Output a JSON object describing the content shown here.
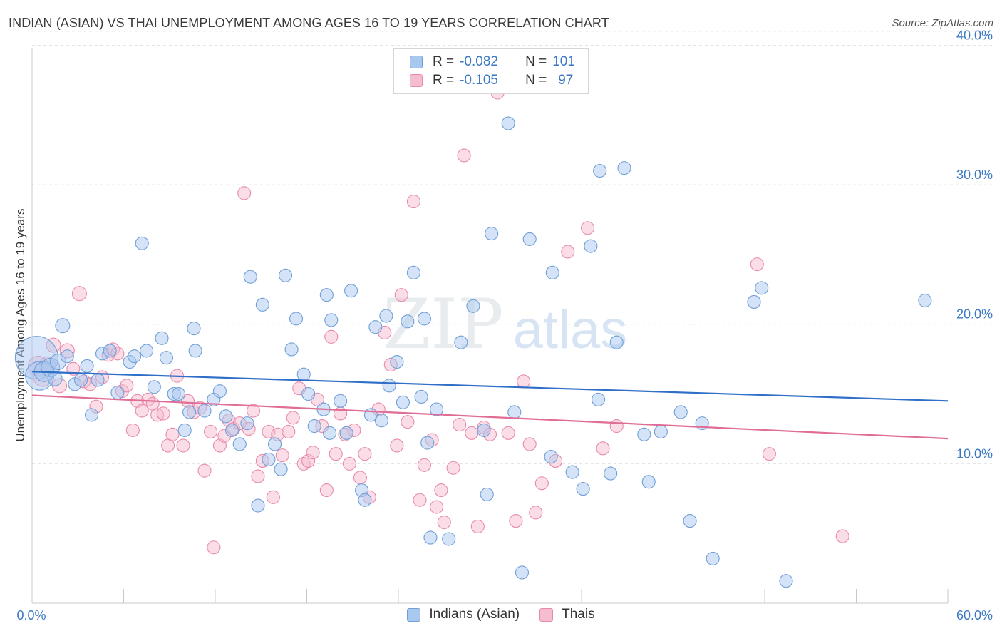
{
  "title": "INDIAN (ASIAN) VS THAI UNEMPLOYMENT AMONG AGES 16 TO 19 YEARS CORRELATION CHART",
  "source": "Source: ZipAtlas.com",
  "watermark": {
    "zip": "ZIP",
    "atlas": "atlas"
  },
  "legend": {
    "r_label": "R =",
    "n_label": "N =",
    "series": [
      {
        "name": "Indians (Asian)",
        "r": "-0.082",
        "n": "101"
      },
      {
        "name": "Thais",
        "r": "-0.105",
        "n": "97"
      }
    ]
  },
  "colors": {
    "indians_fill": "#a9c8ef",
    "indians_stroke": "#6f9fd6",
    "indians_line": "#2f6fc7",
    "thais_fill": "#f6bccf",
    "thais_stroke": "#e88aab",
    "thais_line": "#e06d95",
    "axis_label": "#3b78c4"
  },
  "chart_data": {
    "type": "scatter",
    "xlabel": "",
    "ylabel": "Unemployment Among Ages 16 to 19 years",
    "xlim": [
      0,
      60
    ],
    "ylim": [
      0,
      41.2
    ],
    "x_tick_labels": [
      "0.0%",
      "60.0%"
    ],
    "y_ticks": [
      10,
      20,
      30,
      40
    ],
    "y_tick_labels": [
      "10.0%",
      "20.0%",
      "30.0%",
      "40.0%"
    ],
    "grid": true,
    "legend_position": "top-center",
    "series": [
      {
        "name": "Indians (Asian)",
        "trend": {
          "x": [
            0,
            60
          ],
          "y": [
            16.6,
            14.5
          ]
        },
        "points": [
          [
            0.3,
            17.6,
            30
          ],
          [
            0.5,
            16.3,
            20
          ],
          [
            0.8,
            16.6,
            14
          ],
          [
            1.2,
            16.9,
            13
          ],
          [
            1.5,
            16.1,
            10
          ],
          [
            1.7,
            17.3,
            11
          ],
          [
            2.0,
            19.9,
            10
          ],
          [
            2.3,
            17.7,
            9
          ],
          [
            2.8,
            15.7,
            9
          ],
          [
            3.2,
            16.0,
            9
          ],
          [
            3.6,
            17.0,
            9
          ],
          [
            3.9,
            13.5,
            9
          ],
          [
            4.3,
            16.0,
            9
          ],
          [
            4.6,
            17.9,
            9
          ],
          [
            5.1,
            18.1,
            9
          ],
          [
            5.6,
            15.1,
            9
          ],
          [
            6.4,
            17.3,
            9
          ],
          [
            6.7,
            17.7,
            9
          ],
          [
            7.2,
            25.8,
            9
          ],
          [
            7.5,
            18.1,
            9
          ],
          [
            8.0,
            15.5,
            9
          ],
          [
            8.5,
            19.0,
            9
          ],
          [
            8.8,
            17.6,
            9
          ],
          [
            9.3,
            15.0,
            9
          ],
          [
            9.6,
            15.0,
            9
          ],
          [
            10.0,
            12.4,
            9
          ],
          [
            10.3,
            13.7,
            9
          ],
          [
            10.7,
            18.1,
            9
          ],
          [
            11.3,
            13.8,
            9
          ],
          [
            11.9,
            14.6,
            9
          ],
          [
            10.6,
            19.7,
            9
          ],
          [
            12.3,
            15.2,
            9
          ],
          [
            12.7,
            13.4,
            9
          ],
          [
            13.1,
            12.4,
            9
          ],
          [
            13.6,
            11.4,
            9
          ],
          [
            14.1,
            12.9,
            9
          ],
          [
            14.3,
            23.4,
            9
          ],
          [
            14.8,
            7.0,
            9
          ],
          [
            15.1,
            21.4,
            9
          ],
          [
            15.5,
            10.3,
            9
          ],
          [
            15.9,
            11.4,
            9
          ],
          [
            16.3,
            9.6,
            9
          ],
          [
            16.6,
            23.5,
            9
          ],
          [
            17.0,
            18.2,
            9
          ],
          [
            17.3,
            20.4,
            9
          ],
          [
            17.8,
            16.4,
            9
          ],
          [
            18.1,
            15.0,
            9
          ],
          [
            18.5,
            12.7,
            9
          ],
          [
            19.1,
            13.9,
            9
          ],
          [
            19.5,
            12.2,
            9
          ],
          [
            19.3,
            22.1,
            9
          ],
          [
            19.6,
            20.3,
            9
          ],
          [
            20.2,
            14.5,
            9
          ],
          [
            20.6,
            12.2,
            9
          ],
          [
            20.9,
            22.4,
            9
          ],
          [
            21.6,
            8.1,
            9
          ],
          [
            21.8,
            7.4,
            9
          ],
          [
            22.2,
            13.5,
            9
          ],
          [
            22.5,
            19.8,
            9
          ],
          [
            22.9,
            13.1,
            9
          ],
          [
            23.2,
            20.6,
            9
          ],
          [
            23.4,
            15.6,
            9
          ],
          [
            23.9,
            17.3,
            9
          ],
          [
            24.3,
            14.4,
            9
          ],
          [
            24.6,
            20.2,
            9
          ],
          [
            25.0,
            23.7,
            9
          ],
          [
            25.5,
            14.8,
            9
          ],
          [
            25.7,
            20.4,
            9
          ],
          [
            25.9,
            11.5,
            9
          ],
          [
            26.1,
            4.7,
            9
          ],
          [
            26.5,
            13.9,
            9
          ],
          [
            27.3,
            4.6,
            9
          ],
          [
            28.1,
            18.7,
            9
          ],
          [
            28.9,
            21.3,
            9
          ],
          [
            29.6,
            12.4,
            9
          ],
          [
            29.8,
            7.8,
            9
          ],
          [
            30.1,
            26.5,
            9
          ],
          [
            31.2,
            34.4,
            9
          ],
          [
            31.6,
            13.7,
            9
          ],
          [
            32.1,
            2.2,
            9
          ],
          [
            32.6,
            26.1,
            9
          ],
          [
            34.0,
            10.5,
            9
          ],
          [
            34.1,
            23.7,
            9
          ],
          [
            35.4,
            9.4,
            9
          ],
          [
            36.1,
            8.2,
            9
          ],
          [
            36.6,
            25.6,
            9
          ],
          [
            37.1,
            14.6,
            9
          ],
          [
            37.2,
            31.0,
            9
          ],
          [
            37.9,
            9.3,
            9
          ],
          [
            38.3,
            18.7,
            9
          ],
          [
            38.8,
            31.2,
            9
          ],
          [
            40.1,
            12.1,
            9
          ],
          [
            40.4,
            8.7,
            9
          ],
          [
            41.2,
            12.3,
            9
          ],
          [
            42.5,
            13.7,
            9
          ],
          [
            43.1,
            5.9,
            9
          ],
          [
            43.9,
            12.9,
            9
          ],
          [
            44.6,
            3.2,
            9
          ],
          [
            47.3,
            21.6,
            9
          ],
          [
            47.8,
            22.6,
            9
          ],
          [
            49.4,
            1.6,
            9
          ],
          [
            58.5,
            21.7,
            9
          ]
        ]
      },
      {
        "name": "Thais",
        "trend": {
          "x": [
            0,
            60
          ],
          "y": [
            14.9,
            11.8
          ]
        },
        "points": [
          [
            0.4,
            17.0,
            14
          ],
          [
            0.7,
            16.2,
            13
          ],
          [
            1.0,
            17.1,
            11
          ],
          [
            1.4,
            18.5,
            10
          ],
          [
            1.8,
            15.6,
            10
          ],
          [
            2.3,
            18.1,
            10
          ],
          [
            2.7,
            16.8,
            9
          ],
          [
            3.1,
            22.2,
            10
          ],
          [
            3.4,
            15.9,
            9
          ],
          [
            3.8,
            15.7,
            9
          ],
          [
            4.2,
            14.1,
            9
          ],
          [
            4.6,
            16.2,
            9
          ],
          [
            5.0,
            17.8,
            9
          ],
          [
            5.3,
            18.2,
            9
          ],
          [
            5.6,
            17.9,
            9
          ],
          [
            5.9,
            15.2,
            9
          ],
          [
            6.2,
            15.6,
            9
          ],
          [
            6.6,
            12.4,
            9
          ],
          [
            6.9,
            14.5,
            9
          ],
          [
            7.2,
            13.8,
            9
          ],
          [
            7.6,
            14.6,
            9
          ],
          [
            7.9,
            14.3,
            9
          ],
          [
            8.2,
            13.5,
            9
          ],
          [
            8.6,
            13.6,
            9
          ],
          [
            8.9,
            11.3,
            9
          ],
          [
            9.2,
            12.1,
            9
          ],
          [
            9.5,
            16.3,
            9
          ],
          [
            9.9,
            11.3,
            9
          ],
          [
            10.2,
            14.5,
            9
          ],
          [
            10.6,
            13.7,
            9
          ],
          [
            11.0,
            14.0,
            9
          ],
          [
            11.3,
            9.5,
            9
          ],
          [
            11.7,
            12.3,
            9
          ],
          [
            11.9,
            4.0,
            9
          ],
          [
            12.3,
            11.3,
            9
          ],
          [
            12.6,
            12.0,
            9
          ],
          [
            12.9,
            13.1,
            9
          ],
          [
            13.2,
            12.5,
            9
          ],
          [
            13.6,
            12.9,
            9
          ],
          [
            13.9,
            29.4,
            9
          ],
          [
            14.2,
            12.5,
            9
          ],
          [
            14.5,
            13.8,
            9
          ],
          [
            14.8,
            9.1,
            9
          ],
          [
            15.1,
            10.2,
            9
          ],
          [
            15.5,
            12.3,
            9
          ],
          [
            15.8,
            7.6,
            9
          ],
          [
            16.1,
            12.1,
            9
          ],
          [
            16.4,
            10.6,
            9
          ],
          [
            16.8,
            12.3,
            9
          ],
          [
            17.1,
            13.3,
            9
          ],
          [
            17.5,
            15.4,
            9
          ],
          [
            17.8,
            10.0,
            9
          ],
          [
            18.1,
            10.2,
            9
          ],
          [
            18.4,
            10.8,
            9
          ],
          [
            18.7,
            14.6,
            9
          ],
          [
            19.0,
            12.7,
            9
          ],
          [
            19.3,
            8.1,
            9
          ],
          [
            19.6,
            19.1,
            9
          ],
          [
            19.9,
            10.7,
            9
          ],
          [
            20.2,
            13.6,
            9
          ],
          [
            20.5,
            12.1,
            9
          ],
          [
            20.8,
            10.0,
            9
          ],
          [
            21.1,
            12.4,
            9
          ],
          [
            21.5,
            9.0,
            9
          ],
          [
            21.8,
            10.7,
            9
          ],
          [
            22.1,
            7.6,
            9
          ],
          [
            22.7,
            13.9,
            9
          ],
          [
            23.1,
            19.4,
            9
          ],
          [
            23.5,
            17.1,
            9
          ],
          [
            23.9,
            11.3,
            9
          ],
          [
            24.2,
            22.1,
            9
          ],
          [
            24.6,
            13.0,
            9
          ],
          [
            25.0,
            28.8,
            9
          ],
          [
            25.4,
            7.4,
            9
          ],
          [
            25.7,
            9.9,
            9
          ],
          [
            26.2,
            11.7,
            9
          ],
          [
            26.5,
            6.9,
            9
          ],
          [
            26.8,
            8.1,
            9
          ],
          [
            27.0,
            5.8,
            9
          ],
          [
            27.6,
            9.7,
            9
          ],
          [
            28.0,
            12.8,
            9
          ],
          [
            28.3,
            32.1,
            9
          ],
          [
            28.8,
            12.2,
            9
          ],
          [
            29.2,
            5.5,
            9
          ],
          [
            29.6,
            12.6,
            9
          ],
          [
            30.0,
            12.1,
            9
          ],
          [
            30.5,
            36.6,
            9
          ],
          [
            31.2,
            12.2,
            9
          ],
          [
            31.7,
            5.9,
            9
          ],
          [
            32.2,
            15.9,
            9
          ],
          [
            32.6,
            11.4,
            9
          ],
          [
            33.0,
            6.5,
            9
          ],
          [
            33.4,
            8.6,
            9
          ],
          [
            34.3,
            10.2,
            9
          ],
          [
            35.1,
            25.2,
            9
          ],
          [
            36.4,
            26.9,
            9
          ],
          [
            37.4,
            11.1,
            9
          ],
          [
            38.3,
            12.7,
            9
          ],
          [
            47.5,
            24.3,
            9
          ],
          [
            48.3,
            10.7,
            9
          ],
          [
            53.1,
            4.8,
            9
          ]
        ]
      }
    ]
  }
}
